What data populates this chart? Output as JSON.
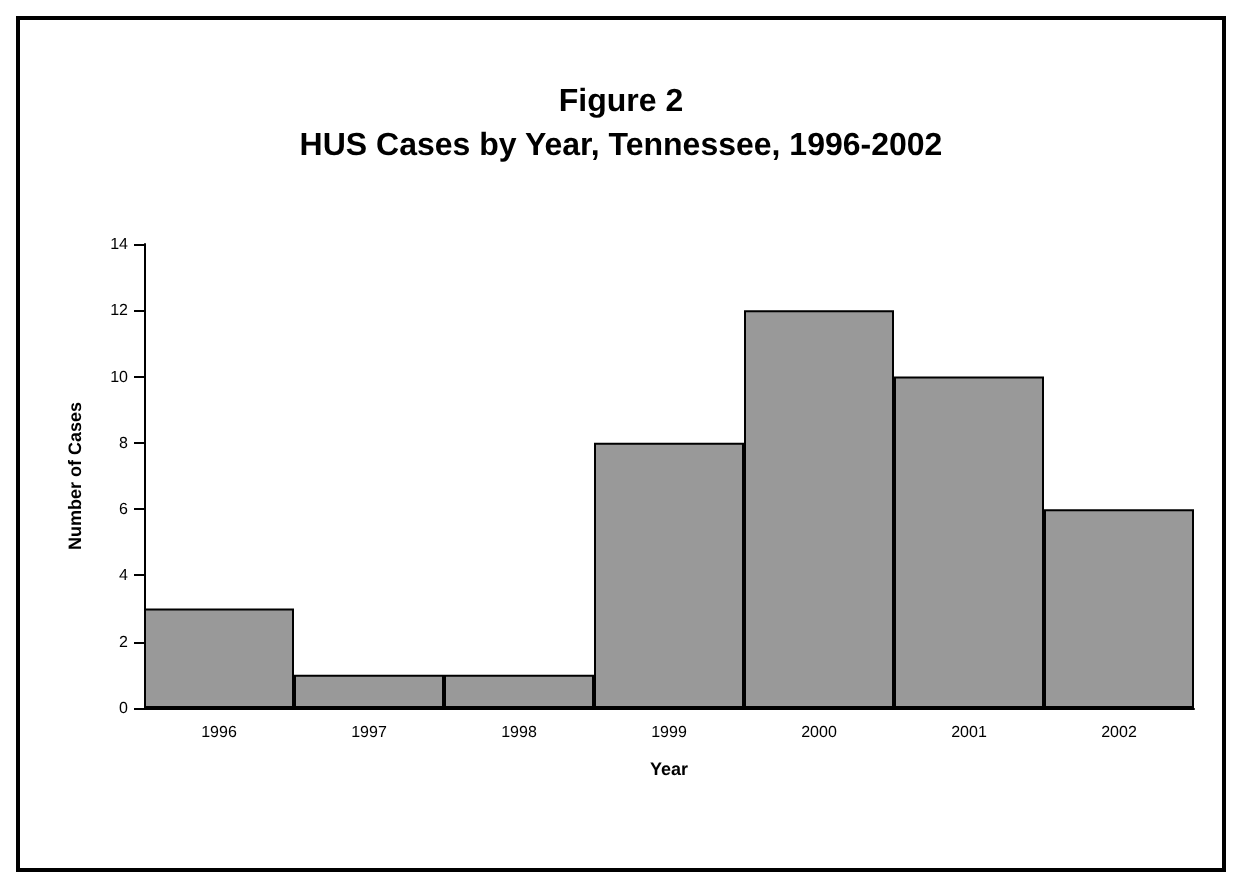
{
  "chart_data": {
    "type": "bar",
    "title": "Figure 2",
    "subtitle": "HUS Cases by Year, Tennessee, 1996-2002",
    "xlabel": "Year",
    "ylabel": "Number of Cases",
    "categories": [
      "1996",
      "1997",
      "1998",
      "1999",
      "2000",
      "2001",
      "2002"
    ],
    "values": [
      3,
      1,
      1,
      8,
      12,
      10,
      6
    ],
    "color": "#999999",
    "ylim": [
      0,
      14
    ],
    "yticks": [
      0,
      2,
      4,
      6,
      8,
      10,
      12,
      14
    ]
  }
}
